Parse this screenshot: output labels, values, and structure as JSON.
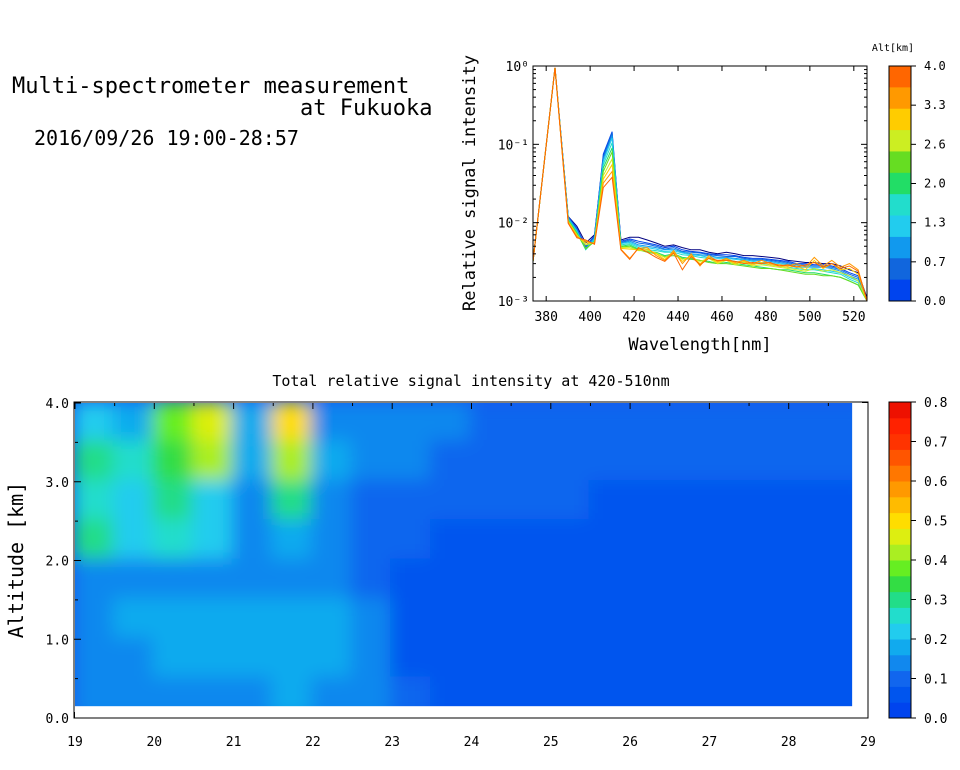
{
  "header": {
    "title_line1": "Multi-spectrometer measurement",
    "title_line2": "at Fukuoka",
    "datetime": "2016/09/26 19:00-28:57"
  },
  "chart_data": [
    {
      "type": "line",
      "title": "",
      "xlabel": "Wavelength[nm]",
      "ylabel": "Relative signal intensity",
      "xlim": [
        374,
        526
      ],
      "ylim": [
        0.001,
        1
      ],
      "y_scale": "log",
      "x_ticks": [
        380,
        400,
        420,
        440,
        460,
        480,
        500,
        520
      ],
      "y_tick_labels": [
        "10⁻³",
        "10⁻²",
        "10⁻¹",
        "10⁰"
      ],
      "y_ticks": [
        0.001,
        0.01,
        0.1,
        1
      ],
      "x": [
        374,
        384,
        390,
        394,
        398,
        402,
        406,
        410,
        414,
        418,
        422,
        426,
        430,
        434,
        438,
        442,
        446,
        450,
        454,
        458,
        462,
        466,
        470,
        474,
        478,
        482,
        486,
        490,
        494,
        498,
        502,
        506,
        510,
        514,
        518,
        522,
        526
      ],
      "legend": {
        "label": "Alt[km]",
        "tick_labels": [
          "4.0",
          "3.3",
          "2.6",
          "2.0",
          "1.3",
          "0.7",
          "0.0"
        ],
        "colors": [
          "#ff6600",
          "#ff9900",
          "#ffcc00",
          "#ccee22",
          "#66dd22",
          "#22dd66",
          "#22ddcc",
          "#22ccee",
          "#1199ee",
          "#1166dd",
          "#0044ee"
        ]
      },
      "series": [
        {
          "color": "#000080",
          "values": [
            0.0032,
            0.95,
            0.012,
            0.009,
            0.0055,
            0.007,
            0.07,
            0.13,
            0.006,
            0.0065,
            0.0065,
            0.006,
            0.0055,
            0.005,
            0.0052,
            0.0048,
            0.0045,
            0.0045,
            0.0042,
            0.004,
            0.0042,
            0.004,
            0.0038,
            0.0038,
            0.0037,
            0.0036,
            0.0035,
            0.0033,
            0.0032,
            0.0031,
            0.0031,
            0.003,
            0.003,
            0.0028,
            0.0025,
            0.0023,
            0.0011
          ]
        },
        {
          "color": "#0044ee",
          "values": [
            0.0032,
            0.95,
            0.012,
            0.0085,
            0.005,
            0.0068,
            0.075,
            0.145,
            0.0058,
            0.0062,
            0.0058,
            0.0055,
            0.0052,
            0.0048,
            0.005,
            0.0045,
            0.0043,
            0.0042,
            0.004,
            0.0039,
            0.0039,
            0.0038,
            0.0036,
            0.0035,
            0.0035,
            0.0034,
            0.0033,
            0.0032,
            0.003,
            0.003,
            0.0029,
            0.0029,
            0.0028,
            0.0026,
            0.0023,
            0.0021,
            0.001
          ]
        },
        {
          "color": "#1166dd",
          "values": [
            0.0032,
            0.95,
            0.0118,
            0.0082,
            0.0048,
            0.0066,
            0.07,
            0.14,
            0.0056,
            0.006,
            0.0055,
            0.0053,
            0.005,
            0.0046,
            0.0048,
            0.0043,
            0.0042,
            0.0041,
            0.0039,
            0.0038,
            0.0037,
            0.0037,
            0.0035,
            0.0034,
            0.0034,
            0.0033,
            0.0032,
            0.0031,
            0.0029,
            0.0029,
            0.0028,
            0.0028,
            0.0027,
            0.0025,
            0.0022,
            0.002,
            0.001
          ]
        },
        {
          "color": "#1199ee",
          "values": [
            0.0032,
            0.95,
            0.0115,
            0.008,
            0.0047,
            0.0064,
            0.065,
            0.13,
            0.0055,
            0.0058,
            0.0052,
            0.005,
            0.0048,
            0.0045,
            0.0046,
            0.0042,
            0.004,
            0.0039,
            0.0038,
            0.0036,
            0.0036,
            0.0035,
            0.0034,
            0.0033,
            0.0033,
            0.0032,
            0.0031,
            0.003,
            0.0028,
            0.0028,
            0.0027,
            0.0027,
            0.0026,
            0.0024,
            0.0021,
            0.0019,
            0.001
          ]
        },
        {
          "color": "#22ccee",
          "values": [
            0.0032,
            0.95,
            0.0112,
            0.0078,
            0.0046,
            0.0062,
            0.06,
            0.12,
            0.0054,
            0.0056,
            0.005,
            0.0048,
            0.0046,
            0.0043,
            0.0044,
            0.0041,
            0.0039,
            0.0038,
            0.0036,
            0.0035,
            0.0035,
            0.0034,
            0.0033,
            0.0032,
            0.0031,
            0.0031,
            0.003,
            0.0029,
            0.0027,
            0.0027,
            0.0026,
            0.0025,
            0.0024,
            0.0023,
            0.002,
            0.0018,
            0.001
          ]
        },
        {
          "color": "#22ddcc",
          "values": [
            0.0032,
            0.95,
            0.011,
            0.0076,
            0.0045,
            0.006,
            0.055,
            0.105,
            0.0052,
            0.0054,
            0.0048,
            0.0045,
            0.0044,
            0.0042,
            0.0042,
            0.0039,
            0.0038,
            0.0036,
            0.0035,
            0.0033,
            0.0034,
            0.0032,
            0.0031,
            0.003,
            0.003,
            0.0029,
            0.0028,
            0.0027,
            0.0026,
            0.0025,
            0.0025,
            0.0024,
            0.0023,
            0.0022,
            0.0019,
            0.0017,
            0.001
          ]
        },
        {
          "color": "#22dd66",
          "values": [
            0.0032,
            0.95,
            0.0108,
            0.0074,
            0.0046,
            0.0058,
            0.05,
            0.09,
            0.005,
            0.0052,
            0.0046,
            0.0043,
            0.0042,
            0.0038,
            0.004,
            0.0036,
            0.0035,
            0.0033,
            0.0032,
            0.003,
            0.0031,
            0.003,
            0.0029,
            0.0028,
            0.0027,
            0.0026,
            0.0025,
            0.0025,
            0.0024,
            0.0023,
            0.0023,
            0.0022,
            0.0021,
            0.002,
            0.0018,
            0.0016,
            0.001
          ]
        },
        {
          "color": "#66dd22",
          "values": [
            0.0032,
            0.95,
            0.0106,
            0.0072,
            0.0047,
            0.0057,
            0.045,
            0.08,
            0.0049,
            0.005,
            0.0045,
            0.0042,
            0.004,
            0.0037,
            0.0038,
            0.0035,
            0.0034,
            0.0033,
            0.0031,
            0.003,
            0.003,
            0.0029,
            0.0028,
            0.0027,
            0.0026,
            0.0026,
            0.0025,
            0.0024,
            0.0023,
            0.0022,
            0.0022,
            0.0021,
            0.0021,
            0.002,
            0.0018,
            0.0016,
            0.001
          ]
        },
        {
          "color": "#ccee22",
          "values": [
            0.0032,
            0.95,
            0.0104,
            0.007,
            0.0052,
            0.0056,
            0.04,
            0.065,
            0.0048,
            0.0048,
            0.0044,
            0.0044,
            0.0041,
            0.0036,
            0.004,
            0.0034,
            0.0036,
            0.0032,
            0.0035,
            0.003,
            0.0033,
            0.0029,
            0.0031,
            0.0028,
            0.0029,
            0.0028,
            0.0027,
            0.0026,
            0.0025,
            0.0024,
            0.0026,
            0.0024,
            0.0025,
            0.0023,
            0.0021,
            0.0018,
            0.001
          ]
        },
        {
          "color": "#ffcc00",
          "values": [
            0.0032,
            0.95,
            0.0102,
            0.0068,
            0.0055,
            0.0055,
            0.036,
            0.055,
            0.0047,
            0.0046,
            0.0045,
            0.0046,
            0.004,
            0.0034,
            0.0042,
            0.0032,
            0.0038,
            0.003,
            0.0036,
            0.0031,
            0.0034,
            0.003,
            0.0032,
            0.0029,
            0.0031,
            0.0029,
            0.0028,
            0.0027,
            0.0028,
            0.0025,
            0.0033,
            0.0026,
            0.003,
            0.0025,
            0.0026,
            0.0022,
            0.001
          ]
        },
        {
          "color": "#ff9900",
          "values": [
            0.0032,
            0.95,
            0.01,
            0.0066,
            0.0058,
            0.0054,
            0.032,
            0.045,
            0.0046,
            0.0035,
            0.0047,
            0.0048,
            0.0038,
            0.0033,
            0.0044,
            0.003,
            0.004,
            0.0028,
            0.0038,
            0.0032,
            0.0035,
            0.0031,
            0.0033,
            0.003,
            0.0033,
            0.003,
            0.0029,
            0.0028,
            0.003,
            0.0027,
            0.0036,
            0.0028,
            0.0033,
            0.0027,
            0.003,
            0.0025,
            0.001
          ]
        },
        {
          "color": "#ff6600",
          "values": [
            0.0032,
            0.95,
            0.0098,
            0.0064,
            0.006,
            0.0053,
            0.028,
            0.038,
            0.0045,
            0.0034,
            0.0048,
            0.0042,
            0.0036,
            0.0032,
            0.0041,
            0.0025,
            0.0037,
            0.0029,
            0.0035,
            0.0033,
            0.0033,
            0.0032,
            0.003,
            0.0031,
            0.003,
            0.0031,
            0.0028,
            0.0029,
            0.0027,
            0.0029,
            0.0031,
            0.0027,
            0.003,
            0.0026,
            0.0028,
            0.0024,
            0.001
          ]
        }
      ]
    },
    {
      "type": "heatmap",
      "title": "Total relative signal intensity at 420-510nm",
      "xlabel": "",
      "ylabel": "Altitude [km]",
      "xlim": [
        19,
        29
      ],
      "ylim": [
        0,
        4
      ],
      "x_ticks": [
        19,
        20,
        21,
        22,
        23,
        24,
        25,
        26,
        27,
        28,
        29
      ],
      "y_ticks": [
        "0.0",
        "1.0",
        "2.0",
        "3.0",
        "4.0"
      ],
      "x_range": [
        19.0,
        28.8
      ],
      "y_range": [
        0.15,
        4.0
      ],
      "x_centers": [
        19.25,
        19.75,
        20.25,
        20.75,
        21.25,
        21.75,
        22.25,
        22.75,
        23.25,
        23.75,
        24.25,
        24.75,
        25.25,
        25.75,
        26.25,
        26.75,
        27.25,
        27.75,
        28.25,
        28.75
      ],
      "y_centers": [
        3.75,
        3.25,
        2.75,
        2.25,
        1.75,
        1.25,
        0.75,
        0.25
      ],
      "values": [
        [
          0.23,
          0.18,
          0.38,
          0.45,
          0.18,
          0.5,
          0.15,
          0.13,
          0.12,
          0.13,
          0.11,
          0.11,
          0.1,
          0.1,
          0.1,
          0.1,
          0.1,
          0.1,
          0.1,
          0.1
        ],
        [
          0.3,
          0.27,
          0.33,
          0.4,
          0.18,
          0.4,
          0.17,
          0.12,
          0.12,
          0.11,
          0.1,
          0.1,
          0.1,
          0.09,
          0.09,
          0.09,
          0.09,
          0.09,
          0.09,
          0.09
        ],
        [
          0.25,
          0.2,
          0.28,
          0.22,
          0.16,
          0.3,
          0.14,
          0.11,
          0.1,
          0.09,
          0.09,
          0.09,
          0.09,
          0.08,
          0.08,
          0.08,
          0.08,
          0.08,
          0.08,
          0.08
        ],
        [
          0.28,
          0.22,
          0.27,
          0.2,
          0.15,
          0.18,
          0.12,
          0.1,
          0.09,
          0.08,
          0.08,
          0.08,
          0.08,
          0.08,
          0.08,
          0.08,
          0.08,
          0.08,
          0.08,
          0.08
        ],
        [
          0.14,
          0.15,
          0.14,
          0.15,
          0.15,
          0.16,
          0.14,
          0.1,
          0.08,
          0.07,
          0.07,
          0.07,
          0.07,
          0.07,
          0.07,
          0.07,
          0.07,
          0.07,
          0.07,
          0.07
        ],
        [
          0.16,
          0.17,
          0.18,
          0.18,
          0.17,
          0.19,
          0.17,
          0.12,
          0.08,
          0.07,
          0.06,
          0.06,
          0.06,
          0.06,
          0.06,
          0.06,
          0.06,
          0.06,
          0.06,
          0.06
        ],
        [
          0.15,
          0.16,
          0.17,
          0.18,
          0.17,
          0.19,
          0.17,
          0.13,
          0.08,
          0.06,
          0.06,
          0.06,
          0.06,
          0.06,
          0.06,
          0.06,
          0.06,
          0.06,
          0.06,
          0.06
        ],
        [
          0.14,
          0.15,
          0.16,
          0.16,
          0.16,
          0.17,
          0.16,
          0.14,
          0.1,
          0.07,
          0.06,
          0.06,
          0.06,
          0.06,
          0.06,
          0.06,
          0.06,
          0.06,
          0.06,
          0.06
        ]
      ],
      "colorbar": {
        "range": [
          0.0,
          0.8
        ],
        "tick_labels": [
          "0.8",
          "0.7",
          "0.6",
          "0.5",
          "0.4",
          "0.3",
          "0.2",
          "0.1",
          "0.0"
        ],
        "colors": [
          "#0044ee",
          "#0055ee",
          "#1166ee",
          "#1188ee",
          "#11aaee",
          "#22ccee",
          "#22ddcc",
          "#22dd88",
          "#33dd44",
          "#66ee22",
          "#aaee22",
          "#ddee11",
          "#ffdd00",
          "#ffbb00",
          "#ff9900",
          "#ff7700",
          "#ff5500",
          "#ff3300",
          "#ff2200",
          "#ee1100"
        ]
      }
    }
  ]
}
